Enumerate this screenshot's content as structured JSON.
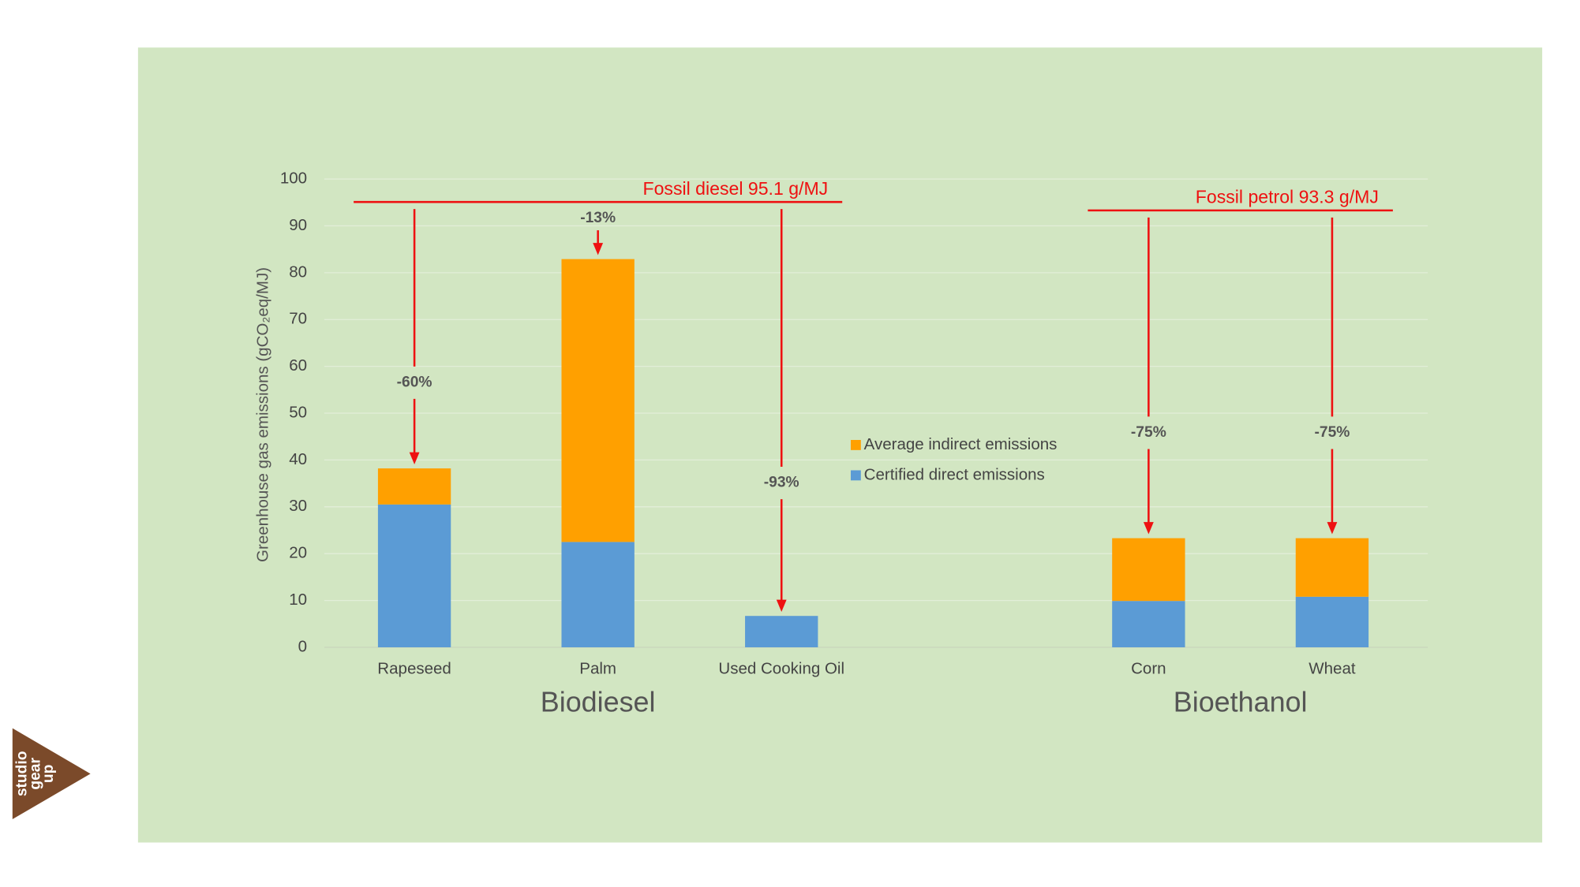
{
  "chart_data": {
    "type": "stacked_bar",
    "y_axis_label": "Greenhouse gas emissions (gCO₂eq/MJ)",
    "categories": [
      "Rapeseed",
      "Palm",
      "Used Cooking Oil",
      null,
      "Corn",
      "Wheat"
    ],
    "series": [
      {
        "name": "Certified direct emissions",
        "color": "#5b9bd5",
        "values": [
          30.5,
          22.5,
          6.7,
          null,
          9.9,
          10.8
        ]
      },
      {
        "name": "Average indirect emissions",
        "color": "#ffa000",
        "values": [
          7.7,
          60.4,
          0,
          null,
          13.4,
          12.5
        ]
      }
    ],
    "annotations": [
      "-60%",
      "-13%",
      "-93%",
      null,
      "-75%",
      "-75%"
    ],
    "groups": [
      {
        "name": "Biodiesel",
        "reference": {
          "label": "Fossil diesel 95.1 g/MJ",
          "value": 95.1
        }
      },
      {
        "name": "Bioethanol",
        "reference": {
          "label": "Fossil petrol 93.3 g/MJ",
          "value": 93.3
        }
      }
    ],
    "ylim": [
      0,
      100
    ],
    "yticks": [
      0,
      10,
      20,
      30,
      40,
      50,
      60,
      70,
      80,
      90,
      100
    ],
    "grid": true,
    "legend": "center"
  },
  "logo": {
    "lines": [
      "studio",
      "gear",
      "up"
    ]
  }
}
